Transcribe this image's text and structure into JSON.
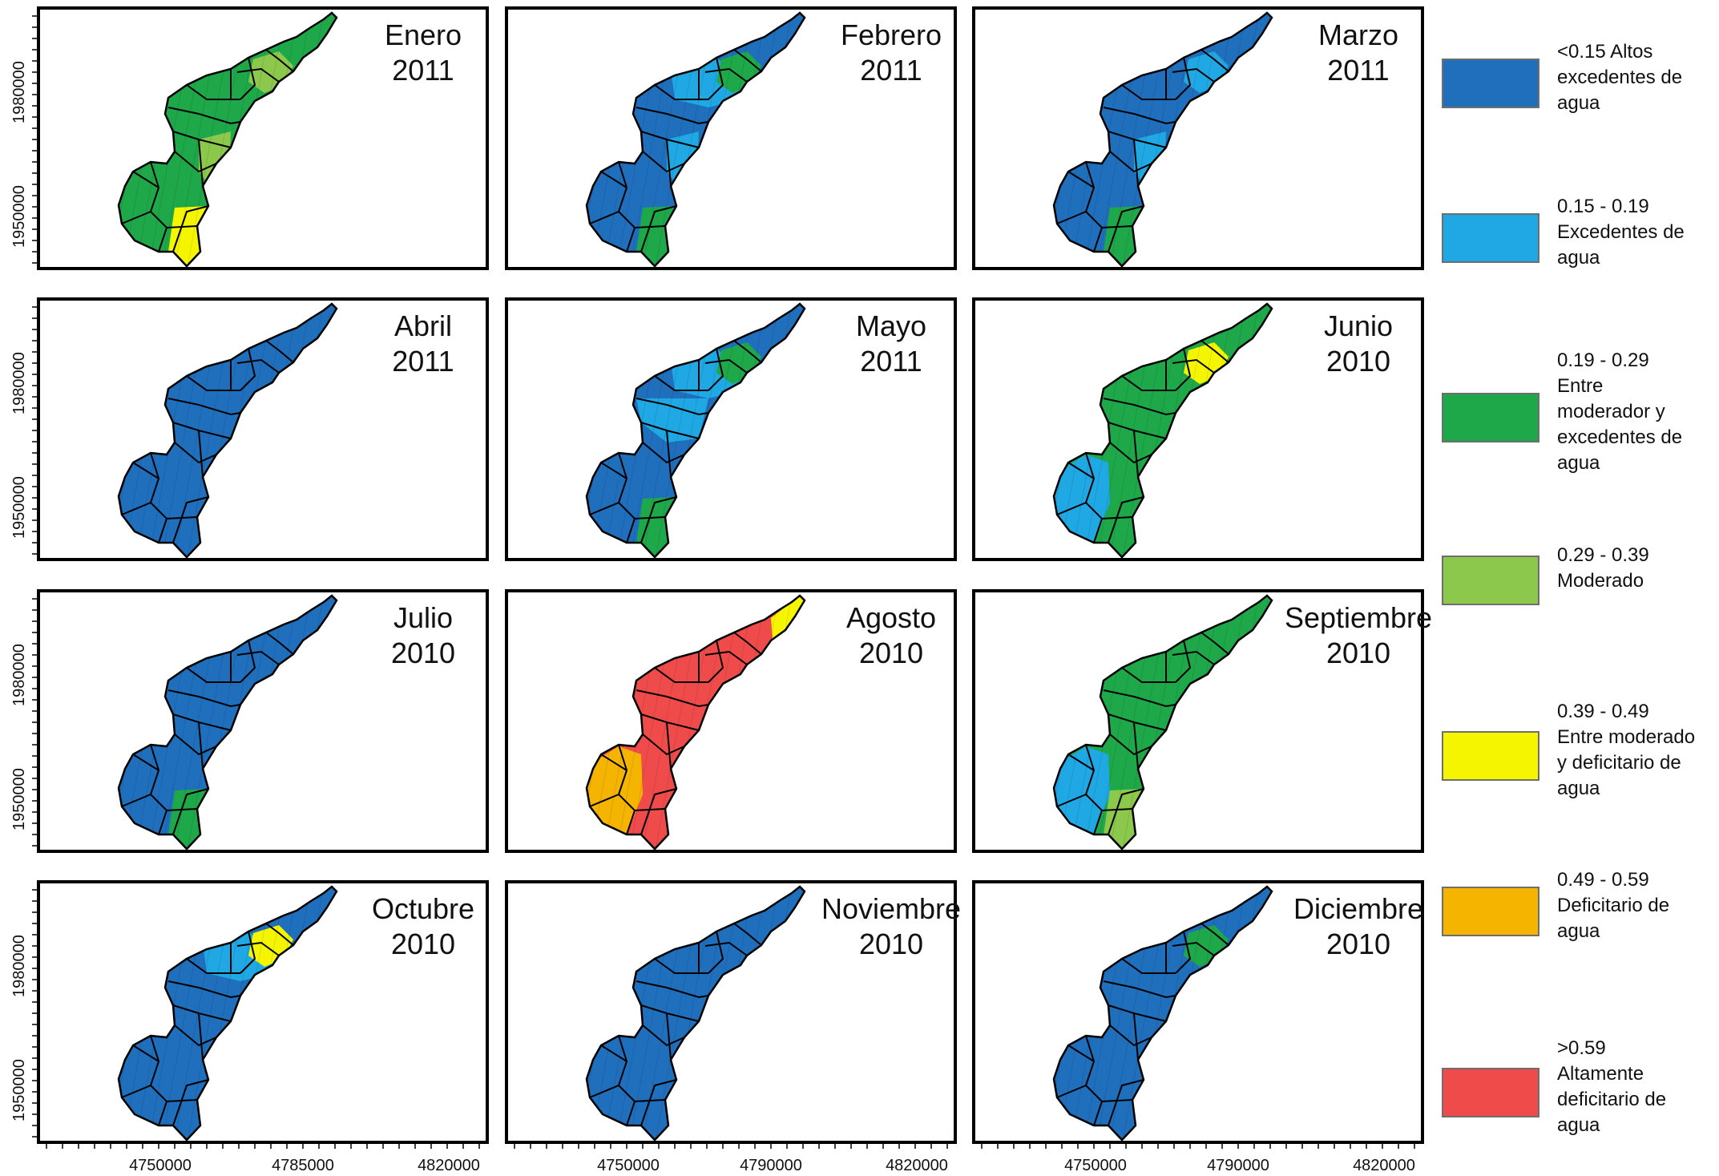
{
  "figure": {
    "panels": [
      {
        "month": "Enero",
        "year": "2011",
        "base": "green",
        "patches": [
          {
            "zone": "head",
            "cls": "mod"
          },
          {
            "zone": "center",
            "cls": "mod"
          },
          {
            "zone": "south",
            "cls": "yel"
          }
        ]
      },
      {
        "month": "Febrero",
        "year": "2011",
        "base": "blue",
        "patches": [
          {
            "zone": "north",
            "cls": "cyan"
          },
          {
            "zone": "head",
            "cls": "green"
          },
          {
            "zone": "center",
            "cls": "cyan"
          },
          {
            "zone": "south",
            "cls": "green"
          }
        ]
      },
      {
        "month": "Marzo",
        "year": "2011",
        "base": "blue",
        "patches": [
          {
            "zone": "head",
            "cls": "cyan"
          },
          {
            "zone": "center",
            "cls": "cyan"
          },
          {
            "zone": "south",
            "cls": "green"
          }
        ]
      },
      {
        "month": "Abril",
        "year": "2011",
        "base": "blue",
        "patches": []
      },
      {
        "month": "Mayo",
        "year": "2011",
        "base": "blue",
        "patches": [
          {
            "zone": "north",
            "cls": "cyan"
          },
          {
            "zone": "middle",
            "cls": "cyan"
          },
          {
            "zone": "head",
            "cls": "green"
          },
          {
            "zone": "south",
            "cls": "green"
          }
        ]
      },
      {
        "month": "Junio",
        "year": "2010",
        "base": "green",
        "patches": [
          {
            "zone": "head",
            "cls": "yel"
          },
          {
            "zone": "west",
            "cls": "cyan"
          }
        ]
      },
      {
        "month": "Julio",
        "year": "2010",
        "base": "blue",
        "patches": [
          {
            "zone": "south",
            "cls": "green"
          }
        ]
      },
      {
        "month": "Agosto",
        "year": "2010",
        "base": "red",
        "patches": [
          {
            "zone": "west",
            "cls": "orange"
          },
          {
            "zone": "tip",
            "cls": "yel"
          }
        ]
      },
      {
        "month": "Septiembre",
        "year": "2010",
        "base": "green",
        "patches": [
          {
            "zone": "west",
            "cls": "cyan"
          },
          {
            "zone": "south",
            "cls": "mod"
          }
        ]
      },
      {
        "month": "Octubre",
        "year": "2010",
        "base": "blue",
        "patches": [
          {
            "zone": "north",
            "cls": "cyan"
          },
          {
            "zone": "head",
            "cls": "yel"
          }
        ]
      },
      {
        "month": "Noviembre",
        "year": "2010",
        "base": "blue",
        "patches": []
      },
      {
        "month": "Diciembre",
        "year": "2010",
        "base": "blue",
        "patches": [
          {
            "zone": "head",
            "cls": "green"
          }
        ]
      }
    ],
    "y_tick_labels": [
      "1980000",
      "1950000"
    ],
    "x_tick_labels": [
      [
        "4750000",
        "4785000",
        "4820000"
      ],
      [
        "4750000",
        "4790000",
        "4820000"
      ],
      [
        "4750000",
        "4790000",
        "4820000"
      ]
    ]
  },
  "colors": {
    "blue": "#1f6fbd",
    "cyan": "#1fa8e3",
    "green": "#1fa84a",
    "mod": "#8cc84b",
    "yel": "#f5f500",
    "orange": "#f5b400",
    "red": "#f04b4b"
  },
  "legend": [
    {
      "cls": "blue",
      "lines": [
        "<0.15 Altos",
        "excedentes de",
        "agua"
      ]
    },
    {
      "cls": "cyan",
      "lines": [
        "0.15 - 0.19",
        "Excedentes de",
        "agua"
      ]
    },
    {
      "cls": "green",
      "lines": [
        "0.19 - 0.29",
        "Entre",
        "moderador y",
        "excedentes de",
        "agua"
      ]
    },
    {
      "cls": "mod",
      "lines": [
        "0.29 - 0.39",
        "Moderado"
      ]
    },
    {
      "cls": "yel",
      "lines": [
        "0.39 - 0.49",
        "Entre moderado",
        "y deficitario de",
        "agua"
      ]
    },
    {
      "cls": "orange",
      "lines": [
        "0.49 - 0.59",
        "Deficitario de",
        "agua"
      ]
    },
    {
      "cls": "red",
      "lines": [
        ">0.59",
        "Altamente",
        "deficitario de",
        "agua"
      ]
    }
  ]
}
